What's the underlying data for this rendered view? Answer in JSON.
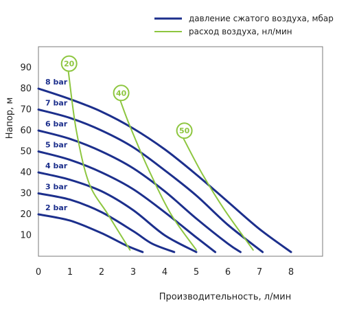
{
  "colors": {
    "pressure": "#1c2f8c",
    "flow": "#8dc63f",
    "grid": "#7a7a7a",
    "text": "#222222"
  },
  "legend": {
    "pressure_label": "давление сжатого воздуха, мбар",
    "flow_label": "расход воздуха, нл/мин"
  },
  "chart_data": {
    "type": "line",
    "xlabel": "Производительность, л/мин",
    "ylabel": "Напор, м",
    "xlim": [
      0,
      9
    ],
    "ylim": [
      0,
      100
    ],
    "x_ticks": [
      "0",
      "1",
      "2",
      "3",
      "4",
      "5",
      "6",
      "7",
      "8"
    ],
    "y_ticks": [
      "10",
      "20",
      "30",
      "40",
      "50",
      "60",
      "70",
      "80",
      "90"
    ],
    "grid": false,
    "legend_position": "top-right",
    "pressure_series": [
      {
        "label": "2 bar",
        "points": [
          [
            0,
            20
          ],
          [
            1,
            17
          ],
          [
            2,
            11
          ],
          [
            2.8,
            5
          ],
          [
            3.3,
            2
          ]
        ]
      },
      {
        "label": "3 bar",
        "points": [
          [
            0,
            30
          ],
          [
            1,
            27
          ],
          [
            2,
            21
          ],
          [
            3,
            12
          ],
          [
            3.6,
            6
          ],
          [
            4.3,
            2
          ]
        ]
      },
      {
        "label": "4 bar",
        "points": [
          [
            0,
            40
          ],
          [
            1,
            36.5
          ],
          [
            2,
            31
          ],
          [
            3,
            22
          ],
          [
            4,
            10
          ],
          [
            5,
            2
          ]
        ]
      },
      {
        "label": "5 bar",
        "points": [
          [
            0,
            50
          ],
          [
            1,
            46
          ],
          [
            2,
            40
          ],
          [
            3,
            32
          ],
          [
            4,
            21
          ],
          [
            5,
            9
          ],
          [
            5.6,
            2
          ]
        ]
      },
      {
        "label": "6 bar",
        "points": [
          [
            0,
            60
          ],
          [
            1,
            56
          ],
          [
            2,
            50
          ],
          [
            3,
            42
          ],
          [
            4,
            31
          ],
          [
            5,
            18
          ],
          [
            6,
            6
          ],
          [
            6.4,
            2
          ]
        ]
      },
      {
        "label": "7 bar",
        "points": [
          [
            0,
            70
          ],
          [
            1,
            66
          ],
          [
            2,
            60
          ],
          [
            3,
            52
          ],
          [
            4,
            41
          ],
          [
            5,
            29
          ],
          [
            6,
            15
          ],
          [
            7.1,
            2
          ]
        ]
      },
      {
        "label": "8 bar",
        "points": [
          [
            0,
            80
          ],
          [
            1,
            75
          ],
          [
            2,
            69
          ],
          [
            3,
            61
          ],
          [
            4,
            51
          ],
          [
            5,
            39
          ],
          [
            6,
            26
          ],
          [
            7,
            13
          ],
          [
            8,
            2
          ]
        ]
      }
    ],
    "flow_series": [
      {
        "label": "20",
        "points": [
          [
            0.95,
            88
          ],
          [
            1.2,
            60
          ],
          [
            1.6,
            35
          ],
          [
            2.2,
            20
          ],
          [
            2.9,
            3
          ]
        ]
      },
      {
        "label": "40",
        "points": [
          [
            2.6,
            74
          ],
          [
            2.9,
            62
          ],
          [
            3.5,
            41
          ],
          [
            4.2,
            20
          ],
          [
            5.0,
            3
          ]
        ]
      },
      {
        "label": "50",
        "points": [
          [
            4.6,
            56
          ],
          [
            5.2,
            39
          ],
          [
            5.9,
            22
          ],
          [
            6.8,
            3
          ]
        ]
      }
    ]
  }
}
